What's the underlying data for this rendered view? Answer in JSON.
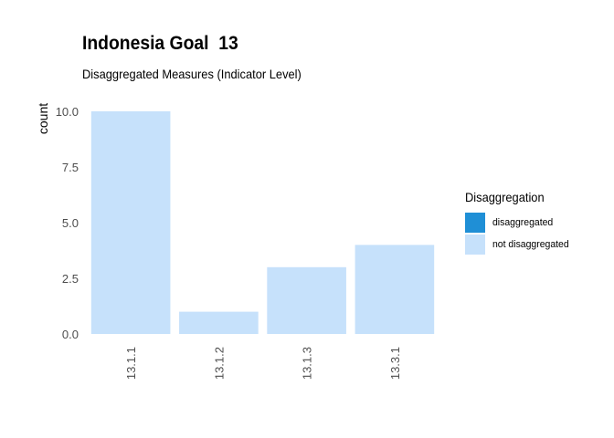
{
  "chart_data": {
    "type": "bar",
    "title": "Indonesia Goal  13",
    "subtitle": "Disaggregated Measures (Indicator Level)",
    "xlabel": "",
    "ylabel": "count",
    "categories": [
      "13.1.1",
      "13.1.2",
      "13.1.3",
      "13.3.1"
    ],
    "series": [
      {
        "name": "disaggregated",
        "values": [
          0,
          0,
          0,
          0
        ]
      },
      {
        "name": "not disaggregated",
        "values": [
          10,
          1,
          3,
          4
        ]
      }
    ],
    "ylim": [
      0,
      10
    ],
    "yticks": [
      "0.0",
      "2.5",
      "5.0",
      "7.5",
      "10.0"
    ],
    "grid": false,
    "legend_title": "Disaggregation",
    "legend_position": "right",
    "colors": {
      "disaggregated": "#1f8fd6",
      "not disaggregated": "#c6e1fb"
    }
  }
}
